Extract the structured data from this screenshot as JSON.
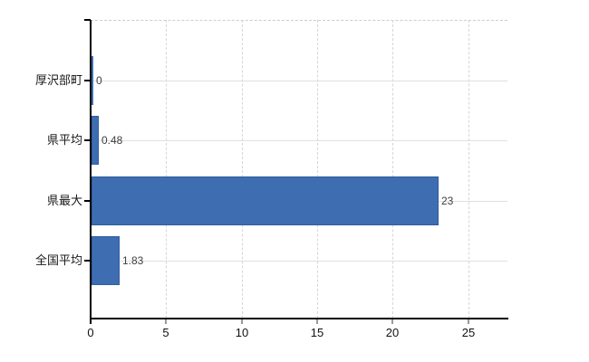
{
  "chart_data": {
    "type": "bar",
    "orientation": "horizontal",
    "title": "",
    "xlabel": "",
    "ylabel": "",
    "categories": [
      "厚沢部町",
      "県平均",
      "県最大",
      "全国平均"
    ],
    "values": [
      0,
      0.48,
      23,
      1.83
    ],
    "value_labels": [
      "0",
      "0.48",
      "23",
      "1.83"
    ],
    "x_ticks": [
      "0",
      "5",
      "10",
      "15",
      "20",
      "25"
    ],
    "x_tick_values": [
      0,
      5,
      10,
      15,
      20,
      25
    ],
    "xlim": [
      0,
      27.6
    ],
    "grid": true,
    "legend": false,
    "colors": {
      "bar": "#3e6db2",
      "bar_border": "#2e5c9e",
      "axis": "#000000",
      "h_gridline": "#dde1dd",
      "v_gridline": "#d6d6d6",
      "top_border": "#cccccc",
      "category_label": "#1a1a1a",
      "value_label": "#404040",
      "minor_tick": "#999999"
    }
  }
}
